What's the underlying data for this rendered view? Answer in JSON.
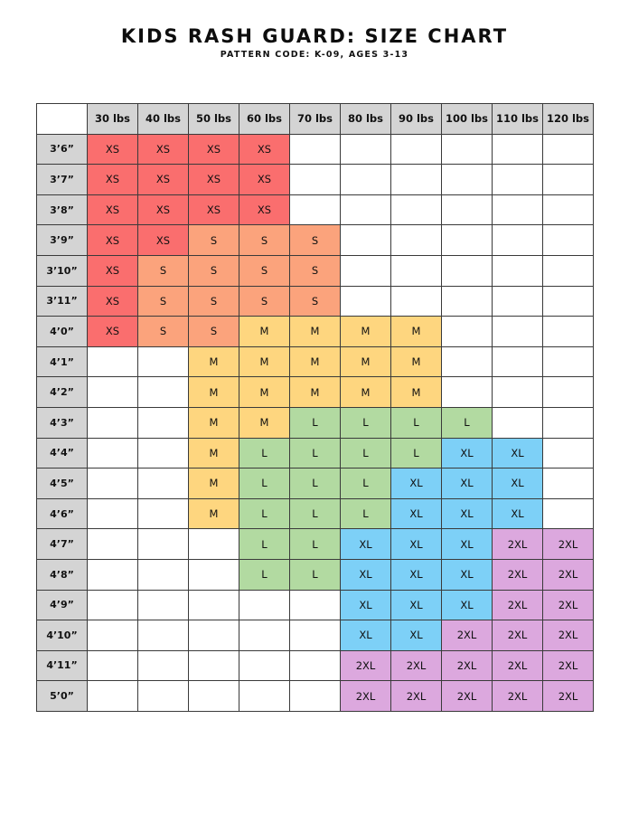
{
  "header": {
    "title": "KIDS RASH GUARD: SIZE CHART",
    "subtitle": "PATTERN CODE: K-09, AGES 3-13"
  },
  "colors": {
    "XS": "#fa6e6e",
    "S": "#fba37c",
    "M": "#fed67f",
    "L": "#b2daa1",
    "XL": "#7dd0f7",
    "2XL": "#dca8de",
    "header_bg": "#d4d4d4"
  },
  "table": {
    "columns": [
      "30 lbs",
      "40 lbs",
      "50 lbs",
      "60 lbs",
      "70 lbs",
      "80 lbs",
      "90 lbs",
      "100 lbs",
      "110 lbs",
      "120 lbs"
    ],
    "rows": [
      {
        "height": "3’6”",
        "sizes": [
          "XS",
          "XS",
          "XS",
          "XS",
          "",
          "",
          "",
          "",
          "",
          ""
        ]
      },
      {
        "height": "3’7”",
        "sizes": [
          "XS",
          "XS",
          "XS",
          "XS",
          "",
          "",
          "",
          "",
          "",
          ""
        ]
      },
      {
        "height": "3’8”",
        "sizes": [
          "XS",
          "XS",
          "XS",
          "XS",
          "",
          "",
          "",
          "",
          "",
          ""
        ]
      },
      {
        "height": "3’9”",
        "sizes": [
          "XS",
          "XS",
          "S",
          "S",
          "S",
          "",
          "",
          "",
          "",
          ""
        ]
      },
      {
        "height": "3’10”",
        "sizes": [
          "XS",
          "S",
          "S",
          "S",
          "S",
          "",
          "",
          "",
          "",
          ""
        ]
      },
      {
        "height": "3’11”",
        "sizes": [
          "XS",
          "S",
          "S",
          "S",
          "S",
          "",
          "",
          "",
          "",
          ""
        ]
      },
      {
        "height": "4’0”",
        "sizes": [
          "XS",
          "S",
          "S",
          "M",
          "M",
          "M",
          "M",
          "",
          "",
          ""
        ]
      },
      {
        "height": "4’1”",
        "sizes": [
          "",
          "",
          "M",
          "M",
          "M",
          "M",
          "M",
          "",
          "",
          ""
        ]
      },
      {
        "height": "4’2”",
        "sizes": [
          "",
          "",
          "M",
          "M",
          "M",
          "M",
          "M",
          "",
          "",
          ""
        ]
      },
      {
        "height": "4’3”",
        "sizes": [
          "",
          "",
          "M",
          "M",
          "L",
          "L",
          "L",
          "L",
          "",
          ""
        ]
      },
      {
        "height": "4’4”",
        "sizes": [
          "",
          "",
          "M",
          "L",
          "L",
          "L",
          "L",
          "XL",
          "XL",
          ""
        ]
      },
      {
        "height": "4’5”",
        "sizes": [
          "",
          "",
          "M",
          "L",
          "L",
          "L",
          "XL",
          "XL",
          "XL",
          ""
        ]
      },
      {
        "height": "4’6”",
        "sizes": [
          "",
          "",
          "M",
          "L",
          "L",
          "L",
          "XL",
          "XL",
          "XL",
          ""
        ]
      },
      {
        "height": "4’7”",
        "sizes": [
          "",
          "",
          "",
          "L",
          "L",
          "XL",
          "XL",
          "XL",
          "2XL",
          "2XL"
        ]
      },
      {
        "height": "4’8”",
        "sizes": [
          "",
          "",
          "",
          "L",
          "L",
          "XL",
          "XL",
          "XL",
          "2XL",
          "2XL"
        ]
      },
      {
        "height": "4’9”",
        "sizes": [
          "",
          "",
          "",
          "",
          "",
          "XL",
          "XL",
          "XL",
          "2XL",
          "2XL"
        ]
      },
      {
        "height": "4’10”",
        "sizes": [
          "",
          "",
          "",
          "",
          "",
          "XL",
          "XL",
          "2XL",
          "2XL",
          "2XL"
        ]
      },
      {
        "height": "4’11”",
        "sizes": [
          "",
          "",
          "",
          "",
          "",
          "2XL",
          "2XL",
          "2XL",
          "2XL",
          "2XL"
        ]
      },
      {
        "height": "5’0”",
        "sizes": [
          "",
          "",
          "",
          "",
          "",
          "2XL",
          "2XL",
          "2XL",
          "2XL",
          "2XL"
        ]
      }
    ]
  }
}
